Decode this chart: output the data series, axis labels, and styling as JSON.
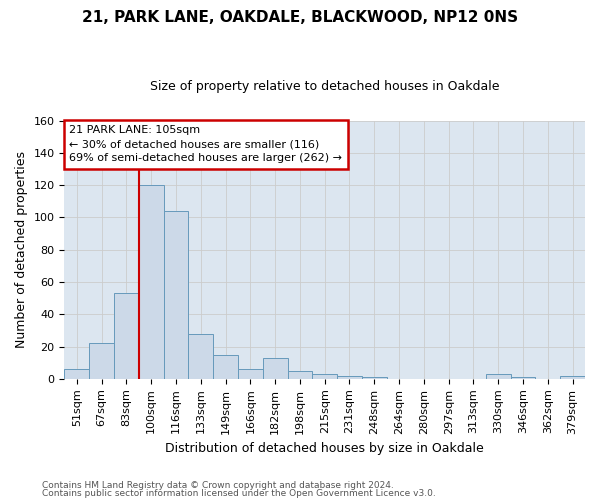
{
  "title": "21, PARK LANE, OAKDALE, BLACKWOOD, NP12 0NS",
  "subtitle": "Size of property relative to detached houses in Oakdale",
  "xlabel": "Distribution of detached houses by size in Oakdale",
  "ylabel": "Number of detached properties",
  "footnote1": "Contains HM Land Registry data © Crown copyright and database right 2024.",
  "footnote2": "Contains public sector information licensed under the Open Government Licence v3.0.",
  "bins": [
    "51sqm",
    "67sqm",
    "83sqm",
    "100sqm",
    "116sqm",
    "133sqm",
    "149sqm",
    "166sqm",
    "182sqm",
    "198sqm",
    "215sqm",
    "231sqm",
    "248sqm",
    "264sqm",
    "280sqm",
    "297sqm",
    "313sqm",
    "330sqm",
    "346sqm",
    "362sqm",
    "379sqm"
  ],
  "values": [
    6,
    22,
    53,
    120,
    104,
    28,
    15,
    6,
    13,
    5,
    3,
    2,
    1,
    0,
    0,
    0,
    0,
    3,
    1,
    0,
    2
  ],
  "bar_color": "#ccd9e8",
  "bar_edge_color": "#6699bb",
  "grid_color": "#cccccc",
  "bg_color": "#dce6f0",
  "fig_bg_color": "#ffffff",
  "redline_x": 2.5,
  "annotation_line1": "21 PARK LANE: 105sqm",
  "annotation_line2": "← 30% of detached houses are smaller (116)",
  "annotation_line3": "69% of semi-detached houses are larger (262) →",
  "annotation_box_facecolor": "#ffffff",
  "annotation_border_color": "#cc0000",
  "redline_color": "#cc0000",
  "ylim": [
    0,
    160
  ],
  "yticks": [
    0,
    20,
    40,
    60,
    80,
    100,
    120,
    140,
    160
  ],
  "title_fontsize": 11,
  "subtitle_fontsize": 9,
  "ylabel_fontsize": 9,
  "xlabel_fontsize": 9,
  "tick_fontsize": 8,
  "annot_fontsize": 8,
  "footnote_fontsize": 6.5
}
